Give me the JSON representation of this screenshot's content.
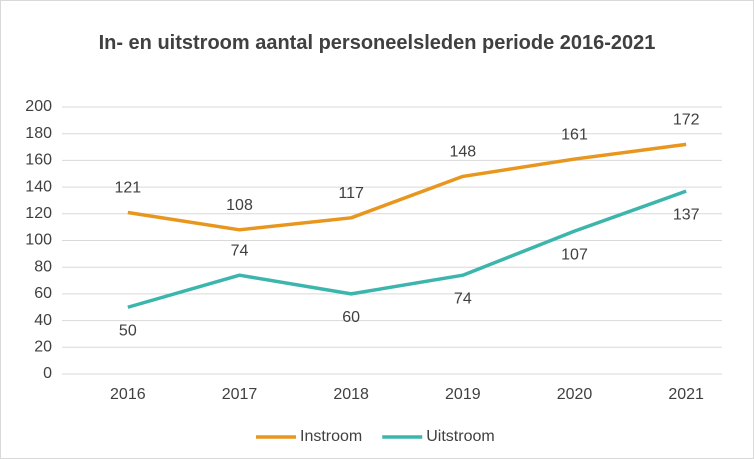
{
  "chart_data": {
    "type": "line",
    "title": "In- en uitstroom aantal personeelsleden periode 2016-2021",
    "categories": [
      "2016",
      "2017",
      "2018",
      "2019",
      "2020",
      "2021"
    ],
    "series": [
      {
        "name": "Instroom",
        "color": "#e8961e",
        "values": [
          121,
          108,
          117,
          148,
          161,
          172
        ]
      },
      {
        "name": "Uitstroom",
        "color": "#3cb5ad",
        "values": [
          50,
          74,
          60,
          74,
          107,
          137
        ]
      }
    ],
    "ylim": [
      0,
      200
    ],
    "yticks": [
      0,
      20,
      40,
      60,
      80,
      100,
      120,
      140,
      160,
      180,
      200
    ],
    "grid": true,
    "legend": "bottom"
  }
}
